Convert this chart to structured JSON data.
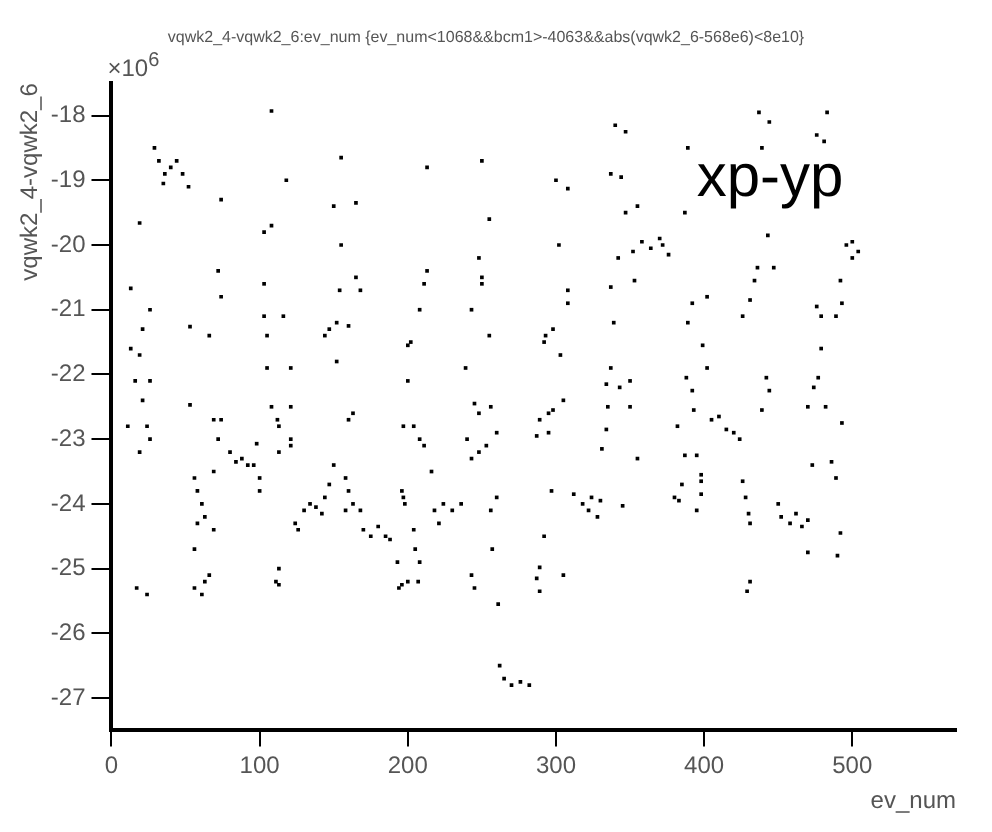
{
  "chart_data": {
    "type": "scatter",
    "title": "vqwk2_4-vqwk2_6:ev_num {ev_num<1068&&bcm1>-4063&&abs(vqwk2_6-568e6)<8e10}",
    "xlabel": "ev_num",
    "ylabel": "vqwk2_4-vqwk2_6",
    "annotations": [
      "×10$^{6}$",
      "xp-yp"
    ],
    "xlim": [
      0,
      570
    ],
    "ylim": [
      -27.5,
      -17.5
    ],
    "xticks": [
      0,
      100,
      200,
      300,
      400,
      500
    ],
    "yticks": [
      -27,
      -26,
      -25,
      -24,
      -23,
      -22,
      -21,
      -20,
      -19,
      -18
    ],
    "grid": false,
    "marker": "square",
    "legend": false,
    "series": [
      {
        "color": "#000000",
        "x": [
          29,
          32,
          36,
          40,
          44,
          48,
          35,
          52,
          108,
          74,
          19,
          13,
          26,
          21,
          13,
          19,
          16,
          26,
          21,
          11,
          24,
          26,
          19,
          17,
          24,
          53,
          66,
          72,
          74,
          53,
          69,
          74,
          72,
          56,
          58,
          61,
          63,
          58,
          56,
          69,
          56,
          61,
          63,
          66,
          69,
          80,
          84,
          88,
          92,
          96,
          98,
          100,
          100,
          103,
          108,
          103,
          103,
          105,
          105,
          116,
          108,
          112,
          113,
          113,
          121,
          121,
          121,
          121,
          118,
          113,
          111,
          113,
          124,
          126,
          130,
          134,
          138,
          142,
          147,
          144,
          150,
          155,
          155,
          150,
          165,
          154,
          165,
          168,
          152,
          147,
          144,
          160,
          152,
          163,
          160,
          158,
          160,
          163,
          158,
          168,
          170,
          175,
          180,
          185,
          188,
          193,
          196,
          194,
          200,
          207,
          204,
          205,
          208,
          196,
          197,
          198,
          197,
          204,
          208,
          211,
          200,
          200,
          202,
          208,
          211,
          213,
          213,
          216,
          218,
          224,
          230,
          236,
          221,
          239,
          240,
          243,
          248,
          253,
          260,
          243,
          248,
          250,
          250,
          255,
          255,
          250,
          245,
          248,
          256,
          243,
          245,
          256,
          260,
          257,
          261,
          262,
          265,
          270,
          276,
          282,
          340,
          347,
          300,
          308,
          337,
          344,
          347,
          355,
          302,
          352,
          358,
          364,
          370,
          376,
          372,
          342,
          353,
          337,
          308,
          308,
          339,
          298,
          293,
          292,
          303,
          337,
          334,
          343,
          350,
          335,
          350,
          305,
          298,
          289,
          295,
          287,
          295,
          334,
          331,
          355,
          297,
          312,
          318,
          324,
          330,
          322,
          328,
          345,
          292,
          289,
          287,
          289,
          305,
          389,
          387,
          389,
          388,
          392,
          393,
          392,
          402,
          399,
          402,
          387,
          395,
          398,
          398,
          385,
          380,
          383,
          398,
          395,
          382,
          405,
          410,
          415,
          420,
          424,
          426,
          428,
          430,
          431,
          431,
          429,
          437,
          444,
          439,
          443,
          436,
          434,
          447,
          431,
          426,
          442,
          444,
          439,
          450,
          452,
          458,
          462,
          466,
          470,
          470,
          490,
          492,
          473,
          486,
          489,
          470,
          482,
          493,
          474,
          477,
          479,
          476,
          479,
          489,
          493,
          492,
          496,
          500,
          504,
          500,
          476,
          481,
          483
        ],
        "values": [
          -18.5,
          -18.7,
          -18.9,
          -18.8,
          -18.7,
          -18.9,
          -19.05,
          -19.1,
          -17.93,
          -19.3,
          -19.66,
          -20.67,
          -21.0,
          -21.3,
          -21.6,
          -21.7,
          -22.1,
          -22.1,
          -22.4,
          -22.8,
          -22.8,
          -23.0,
          -23.2,
          -25.3,
          -25.4,
          -21.26,
          -21.4,
          -20.4,
          -20.8,
          -22.47,
          -22.7,
          -22.7,
          -23.0,
          -23.6,
          -23.8,
          -24.0,
          -24.2,
          -24.3,
          -24.7,
          -24.4,
          -25.3,
          -25.4,
          -25.2,
          -25.1,
          -23.5,
          -23.2,
          -23.35,
          -23.3,
          -23.4,
          -23.4,
          -23.07,
          -23.6,
          -23.8,
          -19.8,
          -19.7,
          -20.6,
          -21.1,
          -21.4,
          -21.9,
          -21.1,
          -22.5,
          -22.7,
          -22.8,
          -23.2,
          -22.5,
          -21.9,
          -23.0,
          -23.1,
          -19.0,
          -25.0,
          -25.2,
          -25.25,
          -24.3,
          -24.4,
          -24.1,
          -24.0,
          -24.05,
          -24.15,
          -23.7,
          -23.9,
          -23.4,
          -18.65,
          -20.0,
          -19.4,
          -19.35,
          -20.7,
          -20.5,
          -20.7,
          -21.2,
          -21.3,
          -21.4,
          -21.25,
          -21.8,
          -22.6,
          -22.7,
          -23.6,
          -23.8,
          -24.0,
          -24.1,
          -24.1,
          -24.4,
          -24.5,
          -24.35,
          -24.5,
          -24.55,
          -24.9,
          -25.25,
          -25.3,
          -25.2,
          -25.2,
          -24.4,
          -24.7,
          -24.9,
          -23.8,
          -23.9,
          -24.0,
          -22.8,
          -22.8,
          -23.0,
          -23.1,
          -22.1,
          -21.55,
          -21.5,
          -21.0,
          -20.6,
          -20.4,
          -18.8,
          -23.5,
          -24.1,
          -24.0,
          -24.1,
          -24.0,
          -24.3,
          -21.9,
          -23.0,
          -23.3,
          -23.2,
          -23.1,
          -22.9,
          -21.0,
          -20.2,
          -20.5,
          -20.6,
          -19.6,
          -21.4,
          -18.7,
          -22.45,
          -22.6,
          -22.5,
          -25.1,
          -25.3,
          -24.1,
          -23.9,
          -24.7,
          -25.55,
          -26.5,
          -26.7,
          -26.8,
          -26.75,
          -26.8,
          -18.15,
          -18.25,
          -19.0,
          -19.13,
          -18.9,
          -18.95,
          -19.5,
          -19.4,
          -20.0,
          -20.1,
          -19.95,
          -20.05,
          -19.9,
          -20.15,
          -20.0,
          -20.2,
          -20.55,
          -20.65,
          -20.7,
          -20.9,
          -21.2,
          -21.3,
          -21.4,
          -21.5,
          -21.7,
          -21.9,
          -22.15,
          -22.2,
          -22.1,
          -22.5,
          -22.5,
          -22.4,
          -22.55,
          -22.7,
          -22.6,
          -22.95,
          -22.9,
          -22.85,
          -23.15,
          -23.3,
          -23.8,
          -23.85,
          -24.0,
          -23.9,
          -23.95,
          -24.1,
          -24.2,
          -24.03,
          -24.5,
          -24.98,
          -25.15,
          -25.35,
          -25.1,
          -18.5,
          -19.5,
          -21.2,
          -22.05,
          -22.25,
          -22.55,
          -20.9,
          -20.8,
          -21.55,
          -21.9,
          -23.25,
          -23.25,
          -23.55,
          -23.65,
          -23.7,
          -23.9,
          -23.95,
          -23.85,
          -24.1,
          -22.8,
          -22.7,
          -22.65,
          -22.85,
          -22.9,
          -23.0,
          -23.65,
          -23.9,
          -24.15,
          -24.3,
          -25.2,
          -25.35,
          -17.95,
          -18.1,
          -18.5,
          -19.85,
          -20.35,
          -20.55,
          -20.35,
          -20.85,
          -21.1,
          -22.05,
          -22.25,
          -22.55,
          -24.0,
          -24.2,
          -24.3,
          -24.15,
          -24.35,
          -24.25,
          -24.75,
          -24.8,
          -24.45,
          -23.4,
          -23.35,
          -23.6,
          -22.5,
          -22.5,
          -22.75,
          -22.2,
          -22.05,
          -21.6,
          -20.95,
          -21.1,
          -21.1,
          -20.9,
          -20.55,
          -20.0,
          -19.95,
          -20.1,
          -20.2,
          -18.3,
          -18.4,
          -17.95
        ]
      }
    ]
  }
}
